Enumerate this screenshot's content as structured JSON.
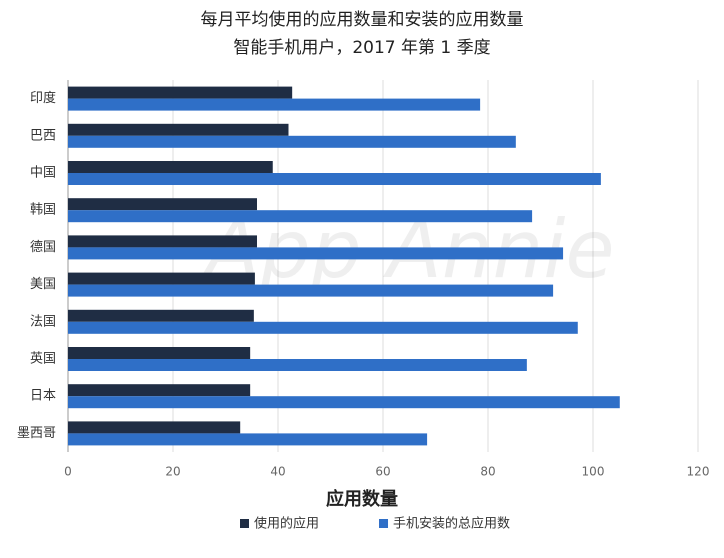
{
  "chart_data": {
    "type": "hbar",
    "title": "每月平均使用的应用数量和安装的应用数量",
    "subtitle": "智能手机用户，2017 年第 1 季度",
    "watermark": "App Annie",
    "categories": [
      "印度",
      "巴西",
      "中国",
      "韩国",
      "德国",
      "美国",
      "法国",
      "英国",
      "日本",
      "墨西哥"
    ],
    "series": [
      {
        "name": "使用的应用",
        "color": "#1f2d44",
        "values": [
          42.7,
          42,
          39,
          36,
          36,
          35.6,
          35.4,
          34.7,
          34.7,
          32.8
        ]
      },
      {
        "name": "手机安装的总应用数",
        "color": "#2f6fc7",
        "values": [
          78.5,
          85.3,
          101.5,
          88.4,
          94.3,
          92.4,
          97.1,
          87.4,
          105.1,
          68.4
        ]
      }
    ],
    "xlabel": "应用数量",
    "xlim": [
      0,
      120
    ],
    "xticks": [
      0,
      20,
      40,
      60,
      80,
      100,
      120
    ],
    "grid": true,
    "legend": "bottom"
  }
}
